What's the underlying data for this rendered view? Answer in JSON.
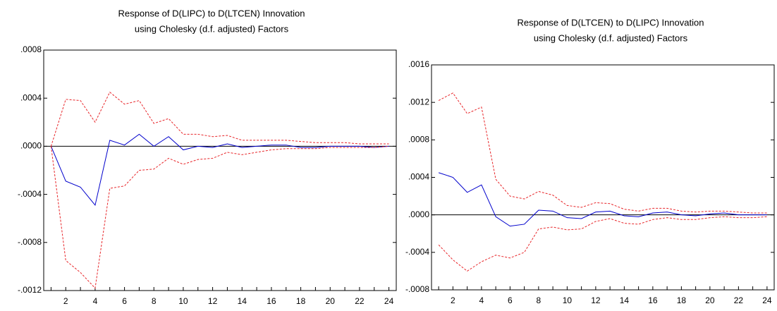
{
  "chart_data": [
    {
      "type": "line",
      "title": "Response of D(LIPC) to D(LTCEN) Innovation",
      "subtitle": "using Cholesky (d.f. adjusted) Factors",
      "x": [
        1,
        2,
        3,
        4,
        5,
        6,
        7,
        8,
        9,
        10,
        11,
        12,
        13,
        14,
        15,
        16,
        17,
        18,
        19,
        20,
        21,
        22,
        23,
        24
      ],
      "xlim": [
        0.5,
        24.5
      ],
      "xticks": [
        2,
        4,
        6,
        8,
        10,
        12,
        14,
        16,
        18,
        20,
        22,
        24
      ],
      "ylim": [
        -0.0012,
        0.0008
      ],
      "yticks": [
        {
          "value": -0.0012,
          "label": "-.0012"
        },
        {
          "value": -0.0008,
          "label": "-.0008"
        },
        {
          "value": -0.0004,
          "label": "-.0004"
        },
        {
          "value": 0,
          "label": ".0000"
        },
        {
          "value": 0.0004,
          "label": ".0004"
        },
        {
          "value": 0.0008,
          "label": ".0008"
        }
      ],
      "series": [
        {
          "color": "#0000cc",
          "dash": false,
          "values": [
            0,
            -0.00029,
            -0.00034,
            -0.00049,
            5e-05,
            1e-05,
            0.0001,
            0,
            8e-05,
            -3e-05,
            0,
            -1e-05,
            2e-05,
            -1e-05,
            0,
            1e-05,
            1e-05,
            -1e-05,
            -1e-05,
            0,
            0,
            0,
            -1e-05,
            0
          ]
        },
        {
          "color": "#e8262a",
          "dash": true,
          "values": [
            0,
            0.00039,
            0.00038,
            0.0002,
            0.00045,
            0.00035,
            0.00038,
            0.00019,
            0.00023,
            0.0001,
            0.0001,
            8e-05,
            9e-05,
            5e-05,
            5e-05,
            5e-05,
            5e-05,
            4e-05,
            3e-05,
            3e-05,
            3e-05,
            2e-05,
            2e-05,
            2e-05
          ]
        },
        {
          "color": "#e8262a",
          "dash": true,
          "values": [
            0,
            -0.00095,
            -0.00105,
            -0.00118,
            -0.00035,
            -0.00033,
            -0.0002,
            -0.00019,
            -0.0001,
            -0.00015,
            -0.00011,
            -0.0001,
            -5e-05,
            -7e-05,
            -5e-05,
            -3e-05,
            -2e-05,
            -2e-05,
            -2e-05,
            -1e-05,
            -1e-05,
            -1e-05,
            -1e-05,
            0
          ]
        }
      ]
    },
    {
      "type": "line",
      "title": "Response of D(LTCEN) to D(LIPC) Innovation",
      "subtitle": "using Cholesky (d.f. adjusted) Factors",
      "x": [
        1,
        2,
        3,
        4,
        5,
        6,
        7,
        8,
        9,
        10,
        11,
        12,
        13,
        14,
        15,
        16,
        17,
        18,
        19,
        20,
        21,
        22,
        23,
        24
      ],
      "xlim": [
        0.5,
        24.5
      ],
      "xticks": [
        2,
        4,
        6,
        8,
        10,
        12,
        14,
        16,
        18,
        20,
        22,
        24
      ],
      "ylim": [
        -0.0008,
        0.0016
      ],
      "yticks": [
        {
          "value": -0.0008,
          "label": "-.0008"
        },
        {
          "value": -0.0004,
          "label": "-.0004"
        },
        {
          "value": 0,
          "label": ".0000"
        },
        {
          "value": 0.0004,
          "label": ".0004"
        },
        {
          "value": 0.0008,
          "label": ".0008"
        },
        {
          "value": 0.0012,
          "label": ".0012"
        },
        {
          "value": 0.0016,
          "label": ".0016"
        }
      ],
      "series": [
        {
          "color": "#0000cc",
          "dash": false,
          "values": [
            0.00045,
            0.0004,
            0.00024,
            0.00032,
            -2e-05,
            -0.00012,
            -0.0001,
            5e-05,
            4e-05,
            -3e-05,
            -4e-05,
            3e-05,
            4e-05,
            -1e-05,
            -2e-05,
            2e-05,
            3e-05,
            0,
            -1e-05,
            1e-05,
            2e-05,
            0,
            0,
            0
          ]
        },
        {
          "color": "#e8262a",
          "dash": true,
          "values": [
            0.00122,
            0.0013,
            0.00108,
            0.00115,
            0.00038,
            0.0002,
            0.00017,
            0.00025,
            0.00021,
            0.0001,
            8e-05,
            0.00013,
            0.00012,
            6e-05,
            4e-05,
            7e-05,
            7e-05,
            4e-05,
            3e-05,
            4e-05,
            4e-05,
            3e-05,
            2e-05,
            2e-05
          ]
        },
        {
          "color": "#e8262a",
          "dash": true,
          "values": [
            -0.00032,
            -0.00048,
            -0.0006,
            -0.0005,
            -0.00043,
            -0.00046,
            -0.0004,
            -0.00015,
            -0.00013,
            -0.00016,
            -0.00015,
            -7e-05,
            -4e-05,
            -9e-05,
            -0.0001,
            -5e-05,
            -3e-05,
            -5e-05,
            -5e-05,
            -3e-05,
            -2e-05,
            -3e-05,
            -3e-05,
            -2e-05
          ]
        }
      ]
    }
  ]
}
